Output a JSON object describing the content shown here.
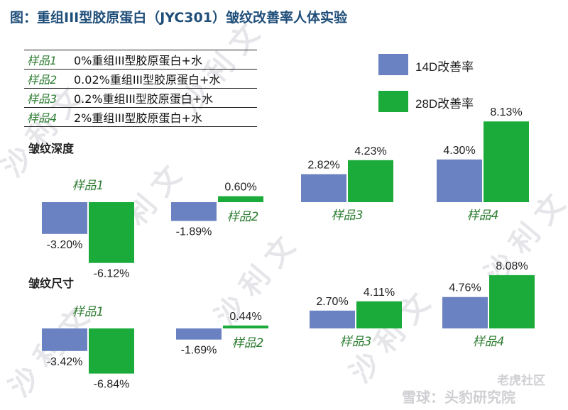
{
  "title": "图：重组III型胶原蛋白（JYC301）皱纹改善率人体实验",
  "samples": [
    {
      "name": "样品1",
      "desc": "0%重组III型胶原蛋白+水"
    },
    {
      "name": "样品2",
      "desc": "0.02%重组III型胶原蛋白+水"
    },
    {
      "name": "样品3",
      "desc": "0.2%重组III型胶原蛋白+水"
    },
    {
      "name": "样品4",
      "desc": "2%重组III型胶原蛋白+水"
    }
  ],
  "legend": [
    {
      "label": "14D改善率",
      "color": "#6b82c2"
    },
    {
      "label": "28D改善率",
      "color": "#1aab3a"
    }
  ],
  "watermark": {
    "text": "沙利文",
    "brand_left": "雪球：头豹研究院",
    "brand_right": "老虎社区"
  },
  "colors": {
    "title": "#1f4e79",
    "category": "#2e7d32",
    "s14": "#6b82c2",
    "s28": "#1aab3a"
  },
  "chart_data": [
    {
      "type": "bar",
      "title": "皱纹深度",
      "categories": [
        "样品1",
        "样品2",
        "样品3",
        "样品4"
      ],
      "series": [
        {
          "name": "14D改善率",
          "values": [
            -3.2,
            -1.89,
            2.82,
            4.3
          ]
        },
        {
          "name": "28D改善率",
          "values": [
            -6.12,
            0.6,
            4.23,
            8.13
          ]
        }
      ],
      "value_labels": [
        [
          "-3.20%",
          "-1.89%",
          "2.82%",
          "4.30%"
        ],
        [
          "-6.12%",
          "0.60%",
          "4.23%",
          "8.13%"
        ]
      ],
      "unit": "%"
    },
    {
      "type": "bar",
      "title": "皱纹尺寸",
      "categories": [
        "样品1",
        "样品2",
        "样品3",
        "样品4"
      ],
      "series": [
        {
          "name": "14D改善率",
          "values": [
            -3.42,
            -1.69,
            2.7,
            4.76
          ]
        },
        {
          "name": "28D改善率",
          "values": [
            -6.84,
            0.44,
            4.11,
            8.08
          ]
        }
      ],
      "value_labels": [
        [
          "-3.42%",
          "-1.69%",
          "2.70%",
          "4.76%"
        ],
        [
          "-6.84%",
          "0.44%",
          "4.11%",
          "8.08%"
        ]
      ],
      "unit": "%"
    }
  ]
}
